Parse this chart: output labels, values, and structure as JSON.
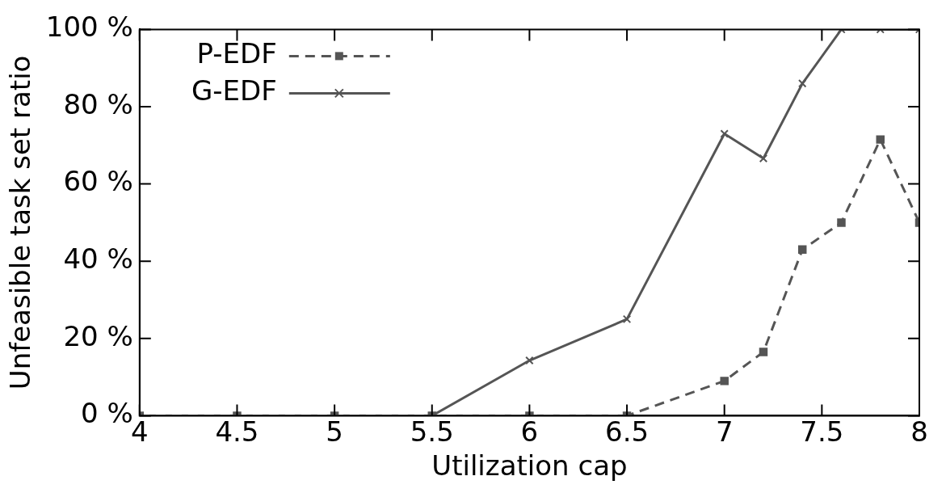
{
  "chart_data": {
    "type": "line",
    "xlabel": "Utilization cap",
    "ylabel": "Unfeasible task set ratio",
    "xlim": [
      4,
      8
    ],
    "xticks": [
      4,
      4.5,
      5,
      5.5,
      6,
      6.5,
      7,
      7.5,
      8
    ],
    "ylim": [
      0,
      100
    ],
    "yticks": [
      {
        "value": 0,
        "label": "0 %"
      },
      {
        "value": 20,
        "label": "20 %"
      },
      {
        "value": 40,
        "label": "40 %"
      },
      {
        "value": 60,
        "label": "60 %"
      },
      {
        "value": 80,
        "label": "80 %"
      },
      {
        "value": 100,
        "label": "100 %"
      }
    ],
    "x": [
      4,
      4.5,
      5,
      5.5,
      6,
      6.5,
      7,
      7.2,
      7.4,
      7.6,
      7.8,
      8
    ],
    "series": [
      {
        "name": "P-EDF",
        "color": "#555555",
        "marker": "square",
        "line_style": "dashed",
        "values": [
          0,
          0,
          0,
          0,
          0,
          0,
          9,
          16.5,
          43,
          50,
          71.5,
          50
        ]
      },
      {
        "name": "G-EDF",
        "color": "#555555",
        "marker": "cross",
        "line_style": "solid",
        "values": [
          null,
          null,
          null,
          0,
          14.3,
          25,
          73,
          66.6,
          86,
          100,
          100,
          100
        ]
      }
    ],
    "grid": false,
    "legend": "top left"
  }
}
